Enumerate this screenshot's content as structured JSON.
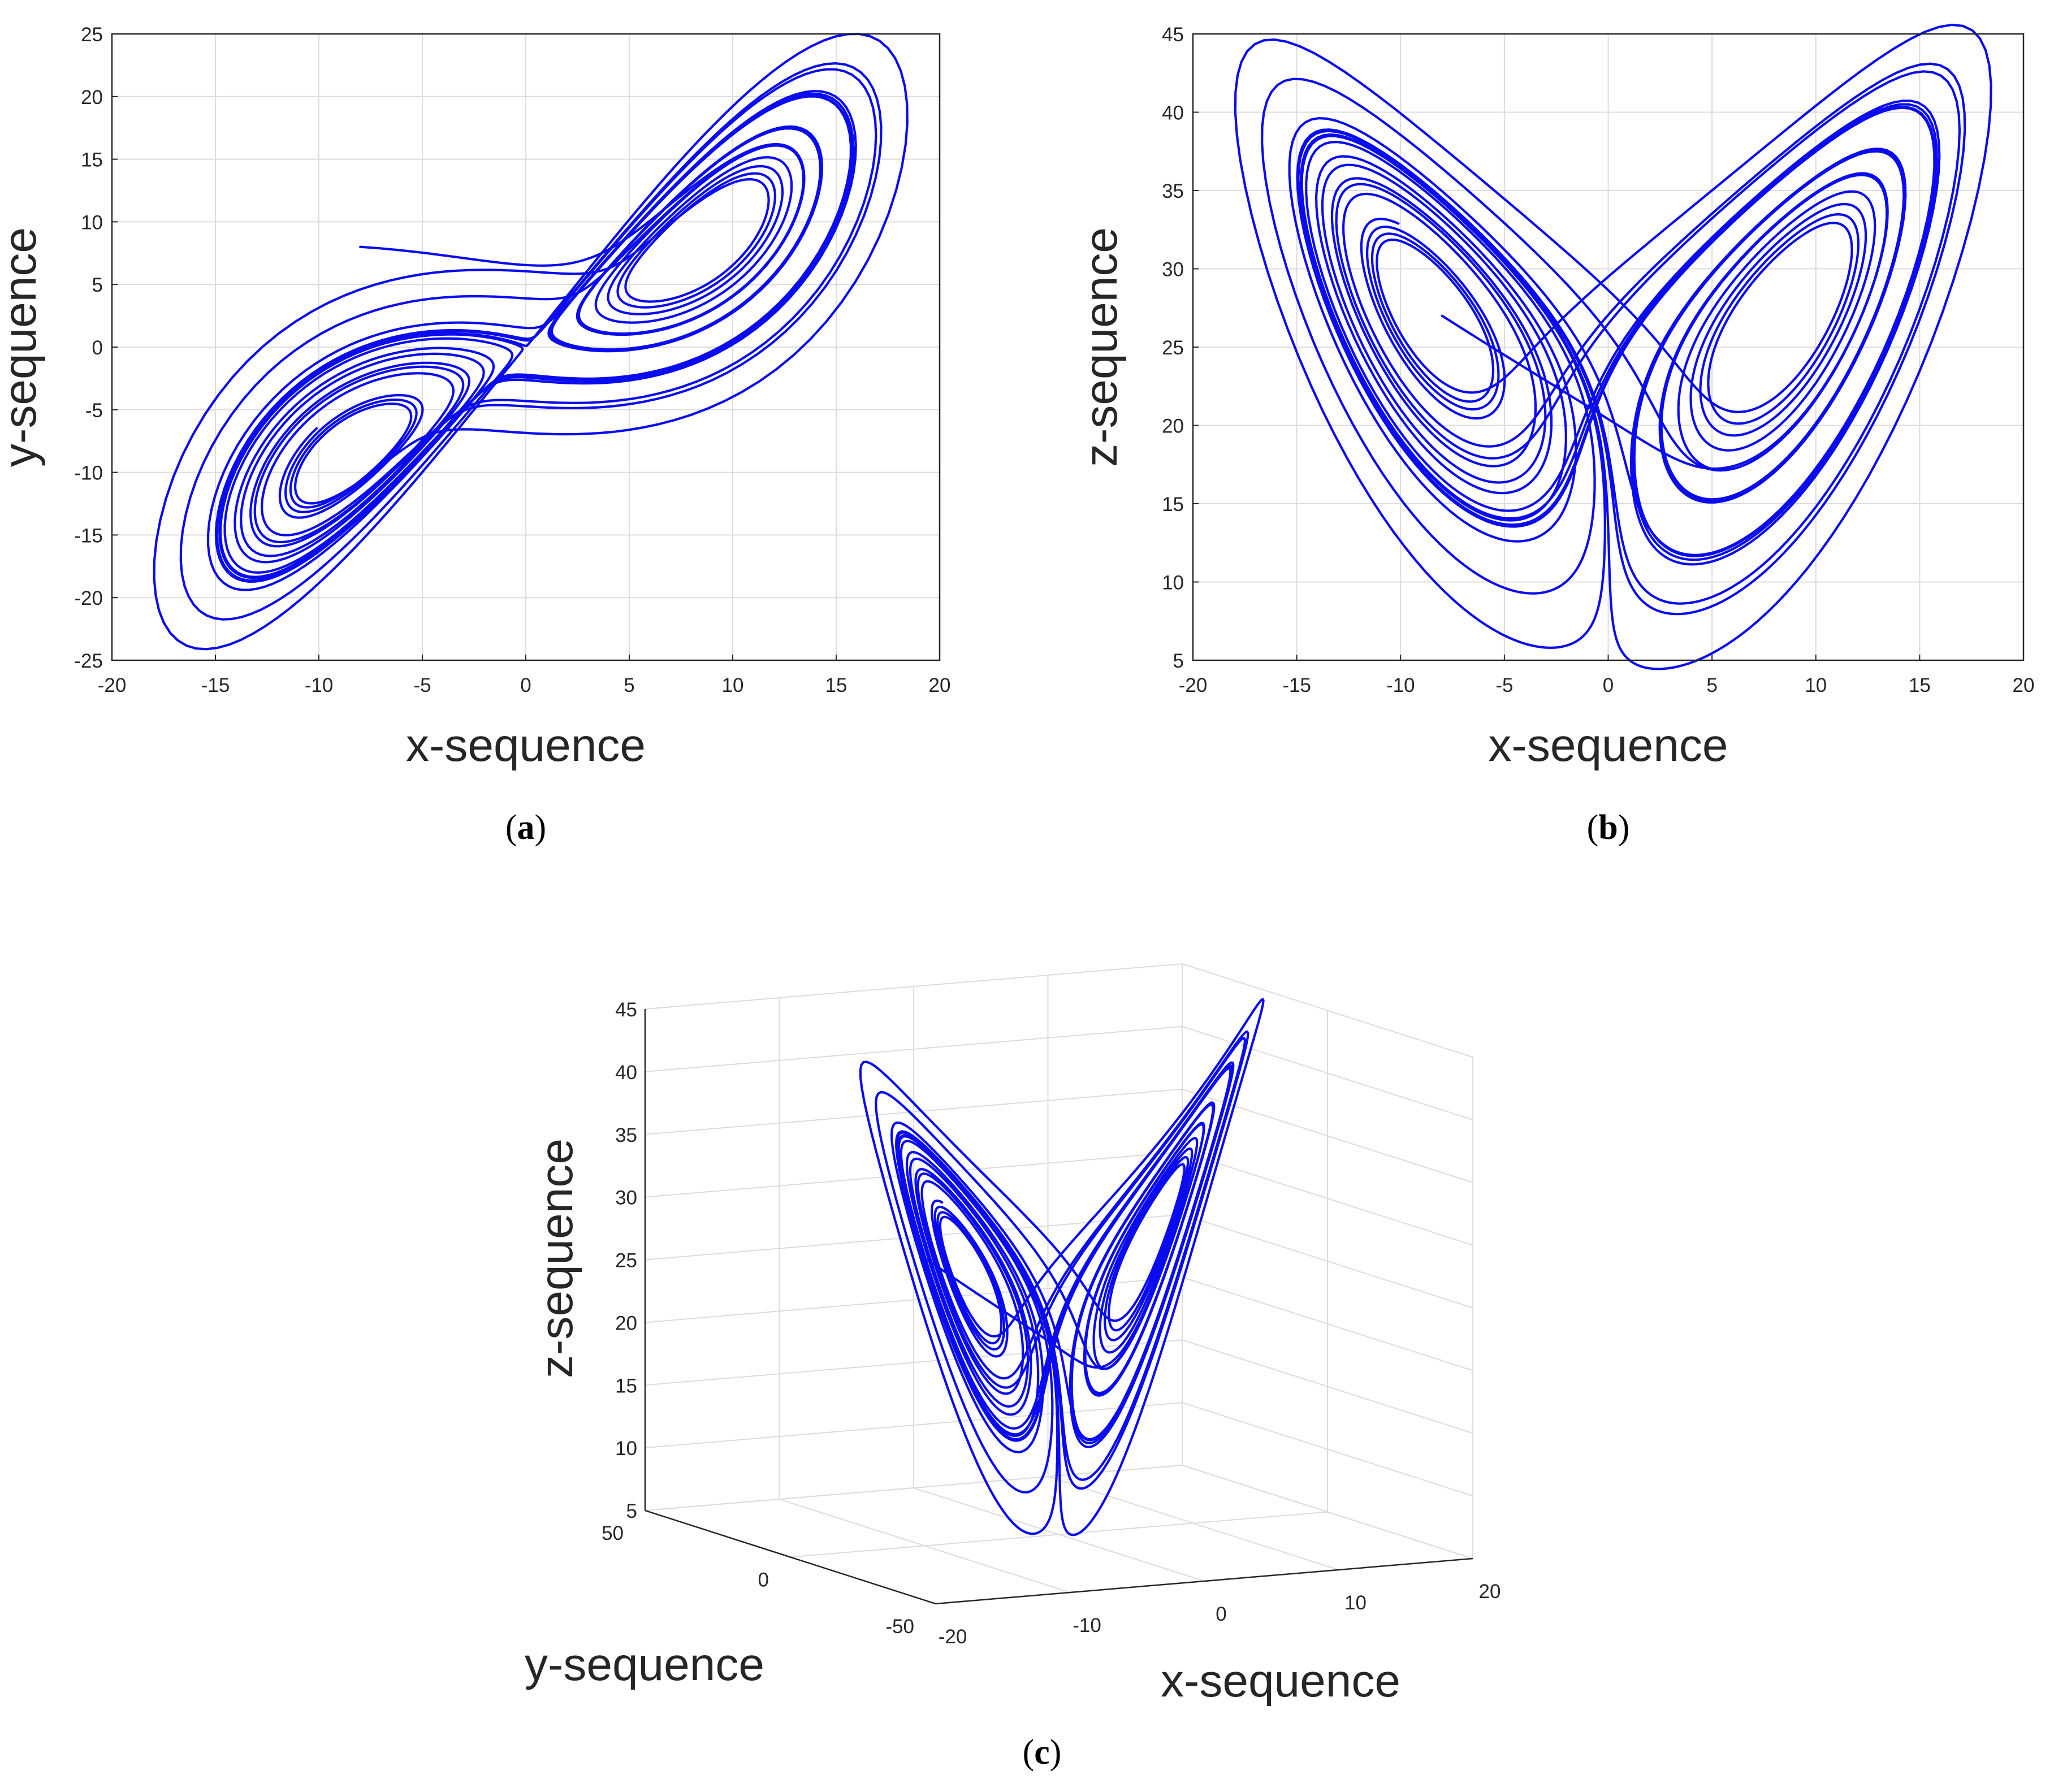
{
  "colors": {
    "trajectory": "#0b0bf0",
    "axis": "#262626",
    "grid": "#dcdcdc"
  },
  "chart_data": [
    {
      "id": "a",
      "type": "line",
      "caption": "a",
      "xlabel": "x-sequence",
      "ylabel": "y-sequence",
      "xlim": [
        -20,
        20
      ],
      "ylim": [
        -25,
        25
      ],
      "xticks": [
        "-20",
        "-15",
        "-10",
        "-5",
        "0",
        "5",
        "10",
        "15",
        "20"
      ],
      "yticks": [
        "-25",
        "-20",
        "-15",
        "-10",
        "-5",
        "0",
        "5",
        "10",
        "15",
        "20",
        "25"
      ],
      "grid": true,
      "series": [
        {
          "description_values": "Lorenz attractor projection, trajectory starting near (-8, 8)",
          "x_start": -8,
          "y_start": 8,
          "x_range": [
            -17.8,
            17.6
          ],
          "y_range": [
            -23.6,
            23.8
          ]
        }
      ]
    },
    {
      "id": "b",
      "type": "line",
      "caption": "b",
      "xlabel": "x-sequence",
      "ylabel": "z-sequence",
      "xlim": [
        -20,
        20
      ],
      "ylim": [
        5,
        45
      ],
      "xticks": [
        "-20",
        "-15",
        "-10",
        "-5",
        "0",
        "5",
        "10",
        "15",
        "20"
      ],
      "yticks": [
        "5",
        "10",
        "15",
        "20",
        "25",
        "30",
        "35",
        "40",
        "45"
      ],
      "grid": true,
      "series": [
        {
          "x_start": -8,
          "z_start": 27,
          "x_range": [
            -17.6,
            17.6
          ],
          "z_range": [
            6.8,
            44.1
          ]
        }
      ]
    },
    {
      "id": "c",
      "type": "line",
      "caption": "c",
      "xlabel": "x-sequence",
      "ylabel": "y-sequence",
      "zlabel": "z-sequence",
      "xlim": [
        -20,
        20
      ],
      "ylim": [
        -50,
        50
      ],
      "zlim": [
        5,
        45
      ],
      "xticks": [
        "-20",
        "-10",
        "0",
        "10",
        "20"
      ],
      "yticks": [
        "-50",
        "0",
        "50"
      ],
      "zticks": [
        "5",
        "10",
        "15",
        "20",
        "25",
        "30",
        "35",
        "40",
        "45"
      ],
      "grid": true,
      "series": [
        {
          "x_start": -8,
          "y_start": 8,
          "z_start": 27
        }
      ]
    }
  ]
}
